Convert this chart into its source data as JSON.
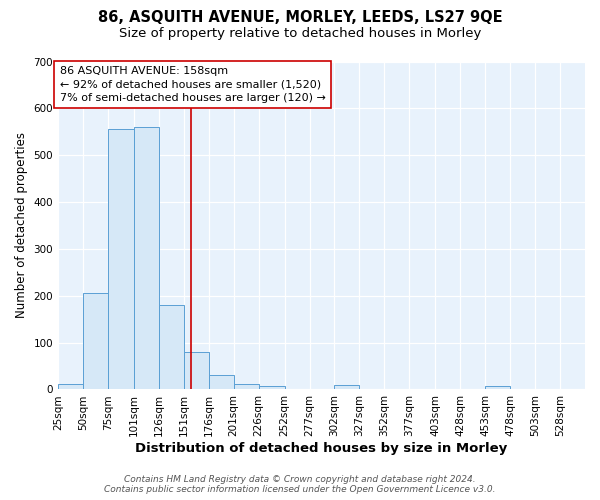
{
  "title": "86, ASQUITH AVENUE, MORLEY, LEEDS, LS27 9QE",
  "subtitle": "Size of property relative to detached houses in Morley",
  "xlabel": "Distribution of detached houses by size in Morley",
  "ylabel": "Number of detached properties",
  "annotation_line1": "86 ASQUITH AVENUE: 158sqm",
  "annotation_line2": "← 92% of detached houses are smaller (1,520)",
  "annotation_line3": "7% of semi-detached houses are larger (120) →",
  "bar_left_edges": [
    25,
    50,
    75,
    101,
    126,
    151,
    176,
    201,
    226,
    252,
    277,
    302,
    327,
    352,
    377,
    403,
    428,
    453,
    478,
    503,
    528
  ],
  "bar_widths": [
    25,
    25,
    26,
    25,
    25,
    25,
    25,
    25,
    26,
    25,
    25,
    25,
    25,
    25,
    26,
    25,
    25,
    25,
    25,
    25,
    25
  ],
  "bar_heights": [
    12,
    205,
    555,
    560,
    180,
    80,
    30,
    12,
    8,
    0,
    0,
    10,
    0,
    0,
    0,
    0,
    0,
    7,
    0,
    0,
    0
  ],
  "bar_face_color": "#d6e8f7",
  "bar_edge_color": "#5a9fd4",
  "vline_color": "#cc0000",
  "vline_x": 158,
  "ylim": [
    0,
    700
  ],
  "yticks": [
    0,
    100,
    200,
    300,
    400,
    500,
    600,
    700
  ],
  "tick_labels": [
    "25sqm",
    "50sqm",
    "75sqm",
    "101sqm",
    "126sqm",
    "151sqm",
    "176sqm",
    "201sqm",
    "226sqm",
    "252sqm",
    "277sqm",
    "302sqm",
    "327sqm",
    "352sqm",
    "377sqm",
    "403sqm",
    "428sqm",
    "453sqm",
    "478sqm",
    "503sqm",
    "528sqm"
  ],
  "bg_color": "#e8f2fc",
  "grid_color": "#ffffff",
  "footer_line1": "Contains HM Land Registry data © Crown copyright and database right 2024.",
  "footer_line2": "Contains public sector information licensed under the Open Government Licence v3.0.",
  "title_fontsize": 10.5,
  "subtitle_fontsize": 9.5,
  "xlabel_fontsize": 9.5,
  "ylabel_fontsize": 8.5,
  "tick_fontsize": 7.5,
  "footer_fontsize": 6.5,
  "annotation_fontsize": 8.0
}
